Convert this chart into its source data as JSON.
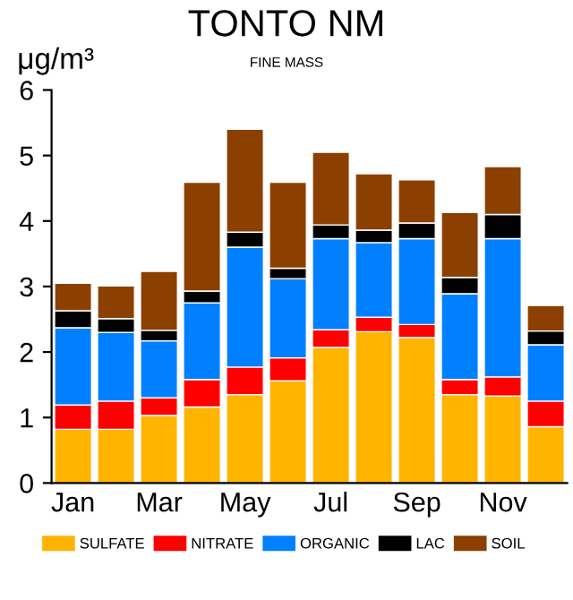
{
  "chart_data": {
    "type": "bar",
    "title": "TONTO NM",
    "subtitle": "FINE MASS",
    "ylabel": "μg/m³",
    "categories": [
      "Jan",
      null,
      "Mar",
      null,
      "May",
      null,
      "Jul",
      null,
      "Sep",
      null,
      "Nov",
      null
    ],
    "stacked": true,
    "series": [
      {
        "name": "SULFATE",
        "color": "#ffb400",
        "values": [
          0.82,
          0.82,
          1.03,
          1.16,
          1.35,
          1.56,
          2.07,
          2.31,
          2.22,
          1.35,
          1.33,
          0.86
        ]
      },
      {
        "name": "NITRATE",
        "color": "#ff0000",
        "values": [
          0.37,
          0.43,
          0.27,
          0.42,
          0.42,
          0.35,
          0.27,
          0.22,
          0.2,
          0.23,
          0.29,
          0.39
        ]
      },
      {
        "name": "ORGANIC",
        "color": "#0080ff",
        "values": [
          1.18,
          1.05,
          0.87,
          1.17,
          1.83,
          1.21,
          1.39,
          1.14,
          1.31,
          1.31,
          2.11,
          0.86
        ]
      },
      {
        "name": "LAC",
        "color": "#000000",
        "values": [
          0.26,
          0.21,
          0.16,
          0.18,
          0.23,
          0.16,
          0.21,
          0.19,
          0.24,
          0.25,
          0.37,
          0.21
        ]
      },
      {
        "name": "SOIL",
        "color": "#8b4000",
        "values": [
          0.42,
          0.5,
          0.9,
          1.66,
          1.57,
          1.31,
          1.11,
          0.86,
          0.66,
          0.99,
          0.73,
          0.39
        ]
      }
    ],
    "ylim": [
      0,
      6
    ],
    "yticks": [
      0,
      1,
      2,
      3,
      4,
      5,
      6
    ],
    "grid": false,
    "legend": "bottom"
  }
}
